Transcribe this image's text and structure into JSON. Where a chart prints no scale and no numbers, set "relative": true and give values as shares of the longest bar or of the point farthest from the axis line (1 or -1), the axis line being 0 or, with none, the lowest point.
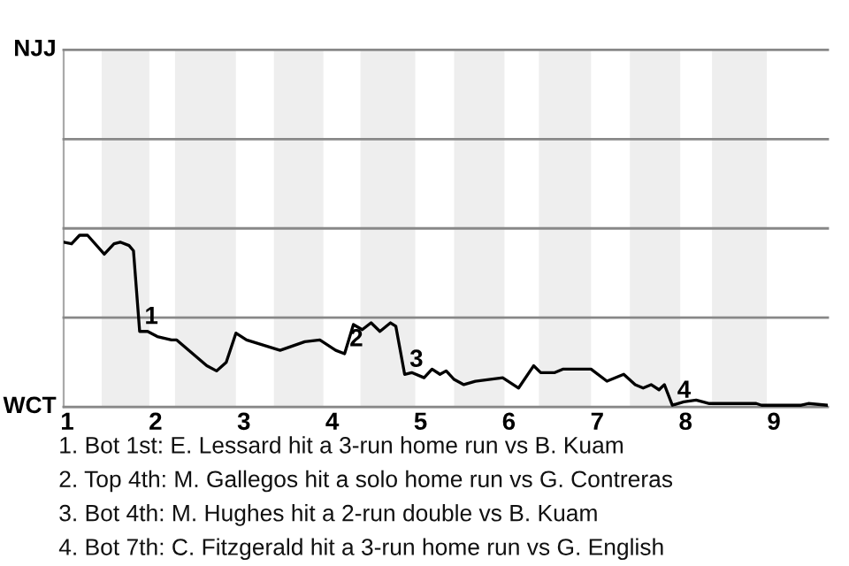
{
  "chart_data": {
    "type": "line",
    "relative": true,
    "x": [
      0.96,
      1.05,
      1.14,
      1.23,
      1.42,
      1.53,
      1.6,
      1.7,
      1.75,
      1.82,
      1.91,
      2.02,
      2.18,
      2.24,
      2.58,
      2.69,
      2.8,
      2.91,
      3.03,
      3.41,
      3.69,
      3.86,
      4.04,
      4.14,
      4.24,
      4.34,
      4.44,
      4.54,
      4.66,
      4.72,
      4.82,
      4.9,
      5.04,
      5.13,
      5.22,
      5.29,
      5.38,
      5.49,
      5.62,
      5.93,
      6.11,
      6.28,
      6.36,
      6.52,
      6.61,
      6.93,
      7.11,
      7.3,
      7.43,
      7.52,
      7.61,
      7.7,
      7.76,
      7.85,
      7.98,
      8.12,
      8.27,
      8.8,
      8.86,
      9.31,
      9.39,
      9.61
    ],
    "series": [
      {
        "color": "#000000",
        "values": [
          0.96,
          0.95,
          1,
          1,
          0.89,
          0.95,
          0.96,
          0.94,
          0.91,
          0.44,
          0.44,
          0.41,
          0.39,
          0.39,
          0.24,
          0.21,
          0.26,
          0.43,
          0.39,
          0.33,
          0.38,
          0.39,
          0.33,
          0.31,
          0.48,
          0.45,
          0.49,
          0.44,
          0.49,
          0.47,
          0.19,
          0.2,
          0.17,
          0.22,
          0.19,
          0.21,
          0.16,
          0.13,
          0.15,
          0.17,
          0.11,
          0.24,
          0.2,
          0.2,
          0.22,
          0.22,
          0.15,
          0.19,
          0.13,
          0.11,
          0.13,
          0.1,
          0.13,
          0.01,
          0.03,
          0.04,
          0.02,
          0.02,
          0.01,
          0.01,
          0.02,
          0.01
        ]
      }
    ],
    "xlim": [
      0.96,
      9.61
    ],
    "xticks": [
      1,
      2,
      3,
      4,
      5,
      6,
      7,
      8,
      9
    ],
    "marker": "none",
    "line_style": "solid",
    "ref_lines": [
      {
        "axis": "y",
        "value": 0,
        "label": "WCT",
        "color": "#888888"
      },
      {
        "axis": "y",
        "value": 0.52,
        "label": null,
        "color": "#888888"
      },
      {
        "axis": "y",
        "value": 1.04,
        "label": null,
        "color": "#888888"
      },
      {
        "axis": "y",
        "value": 1.56,
        "label": null,
        "color": "#888888"
      },
      {
        "axis": "y",
        "value": 2.08,
        "label": "NJJ",
        "color": "#888888"
      }
    ],
    "bands": [
      {
        "axis": "x",
        "from": 1.39,
        "to": 1.93,
        "color": "#eeeeee"
      },
      {
        "axis": "x",
        "from": 2.22,
        "to": 2.91,
        "color": "#eeeeee"
      },
      {
        "axis": "x",
        "from": 3.34,
        "to": 3.9,
        "color": "#eeeeee"
      },
      {
        "axis": "x",
        "from": 4.32,
        "to": 4.94,
        "color": "#eeeeee"
      },
      {
        "axis": "x",
        "from": 5.38,
        "to": 5.95,
        "color": "#eeeeee"
      },
      {
        "axis": "x",
        "from": 6.34,
        "to": 6.93,
        "color": "#eeeeee"
      },
      {
        "axis": "x",
        "from": 7.37,
        "to": 7.94,
        "color": "#eeeeee"
      },
      {
        "axis": "x",
        "from": 8.3,
        "to": 8.92,
        "color": "#eeeeee"
      }
    ],
    "annotations": [
      {
        "text": "1",
        "x": 1.82,
        "y": 0.44
      },
      {
        "text": "2",
        "x": 4.14,
        "y": 0.31
      },
      {
        "text": "3",
        "x": 4.82,
        "y": 0.19
      },
      {
        "text": "4",
        "x": 7.85,
        "y": 0.01
      },
      "1. Bot 1st: E. Lessard hit a 3-run home run vs B. Kuam",
      "2. Top 4th: M. Gallegos hit a solo home run vs G. Contreras",
      "3. Bot 4th: M. Hughes hit a 2-run double vs B. Kuam",
      "4. Bot 7th: C. Fitzgerald hit a 3-run home run vs G. English"
    ]
  }
}
